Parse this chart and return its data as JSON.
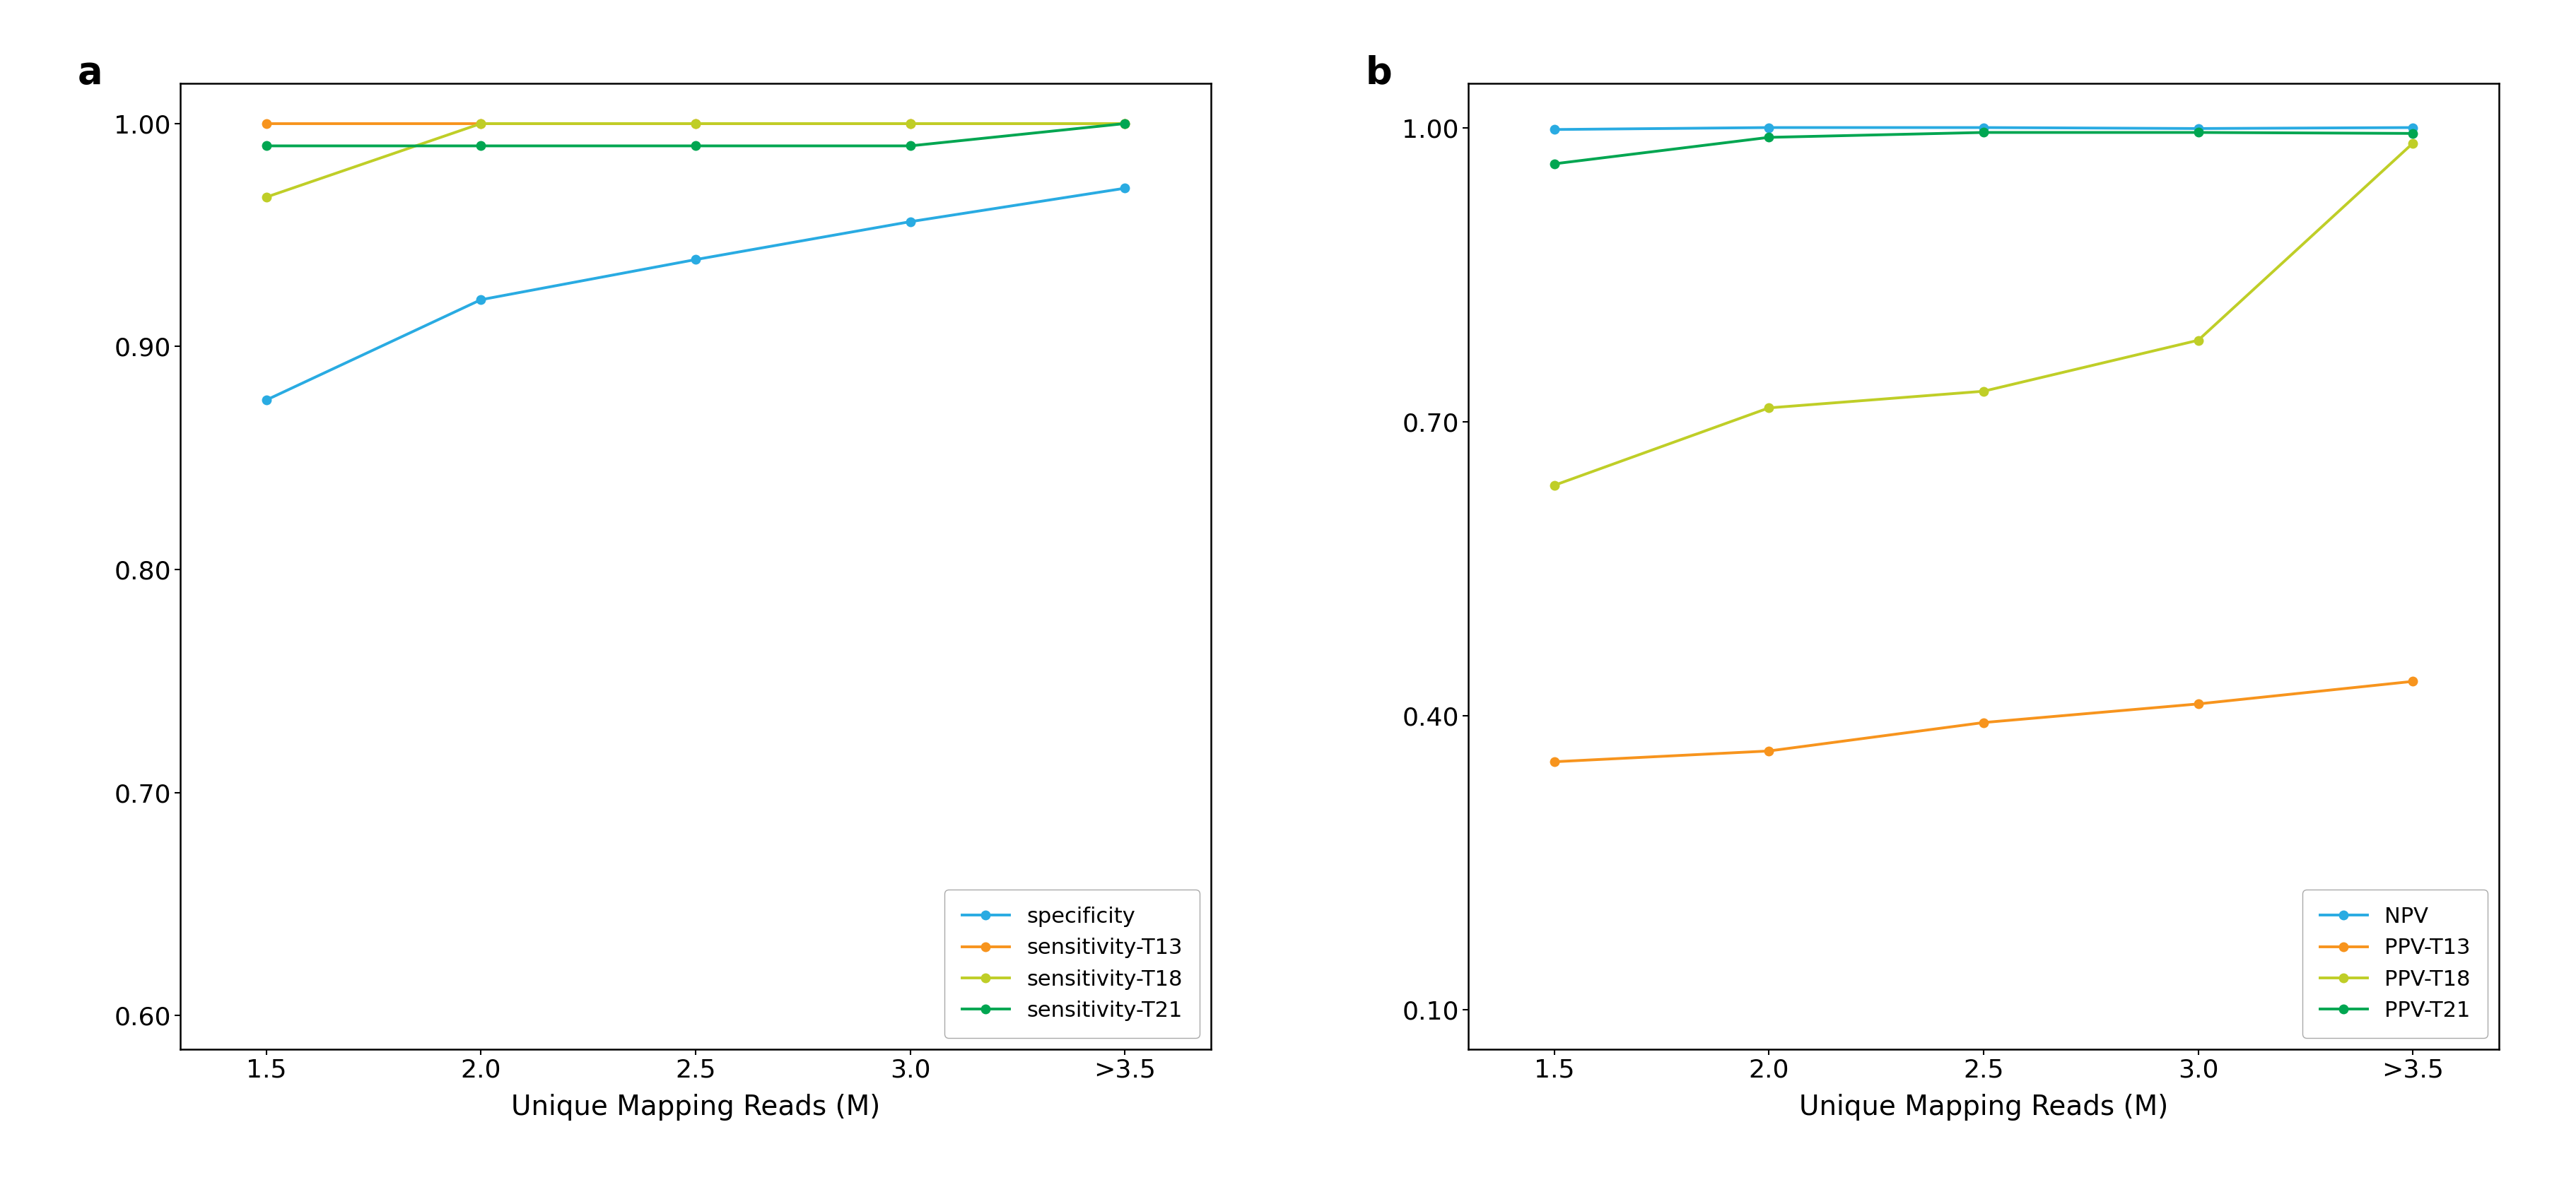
{
  "x_labels": [
    "1.5",
    "2.0",
    "2.5",
    "3.0",
    ">3.5"
  ],
  "x_values": [
    1,
    2,
    3,
    4,
    5
  ],
  "panel_a": {
    "title": "a",
    "ylabel_values": [
      0.6,
      0.7,
      0.8,
      0.9,
      1.0
    ],
    "ylim": [
      0.585,
      1.018
    ],
    "series": [
      {
        "label": "specificity",
        "color": "#29ABE2",
        "values": [
          0.876,
          0.921,
          0.939,
          0.956,
          0.971
        ]
      },
      {
        "label": "sensitivity-T13",
        "color": "#F7941D",
        "values": [
          1.0,
          1.0,
          1.0,
          1.0,
          1.0
        ]
      },
      {
        "label": "sensitivity-T18",
        "color": "#BFCE27",
        "values": [
          0.967,
          1.0,
          1.0,
          1.0,
          1.0
        ]
      },
      {
        "label": "sensitivity-T21",
        "color": "#00A651",
        "values": [
          0.99,
          0.99,
          0.99,
          0.99,
          1.0
        ]
      }
    ],
    "xlabel": "Unique Mapping Reads (M)",
    "legend_loc": "lower right",
    "legend_bbox": null
  },
  "panel_b": {
    "title": "b",
    "ylabel_values": [
      0.1,
      0.4,
      0.7,
      1.0
    ],
    "ylim": [
      0.06,
      1.045
    ],
    "series": [
      {
        "label": "NPV",
        "color": "#29ABE2",
        "values": [
          0.998,
          1.0,
          1.0,
          0.999,
          1.0
        ]
      },
      {
        "label": "PPV-T13",
        "color": "#F7941D",
        "values": [
          0.353,
          0.364,
          0.393,
          0.412,
          0.435
        ]
      },
      {
        "label": "PPV-T18",
        "color": "#BFCE27",
        "values": [
          0.635,
          0.714,
          0.731,
          0.783,
          0.984
        ]
      },
      {
        "label": "PPV-T21",
        "color": "#00A651",
        "values": [
          0.963,
          0.99,
          0.995,
          0.995,
          0.994
        ]
      }
    ],
    "xlabel": "Unique Mapping Reads (M)",
    "legend_loc": "lower right",
    "legend_bbox": null
  },
  "marker": "o",
  "markersize": 9,
  "linewidth": 2.8,
  "label_fontsize": 28,
  "tick_fontsize": 26,
  "legend_fontsize": 22,
  "panel_label_fontsize": 38,
  "background_color": "#ffffff"
}
